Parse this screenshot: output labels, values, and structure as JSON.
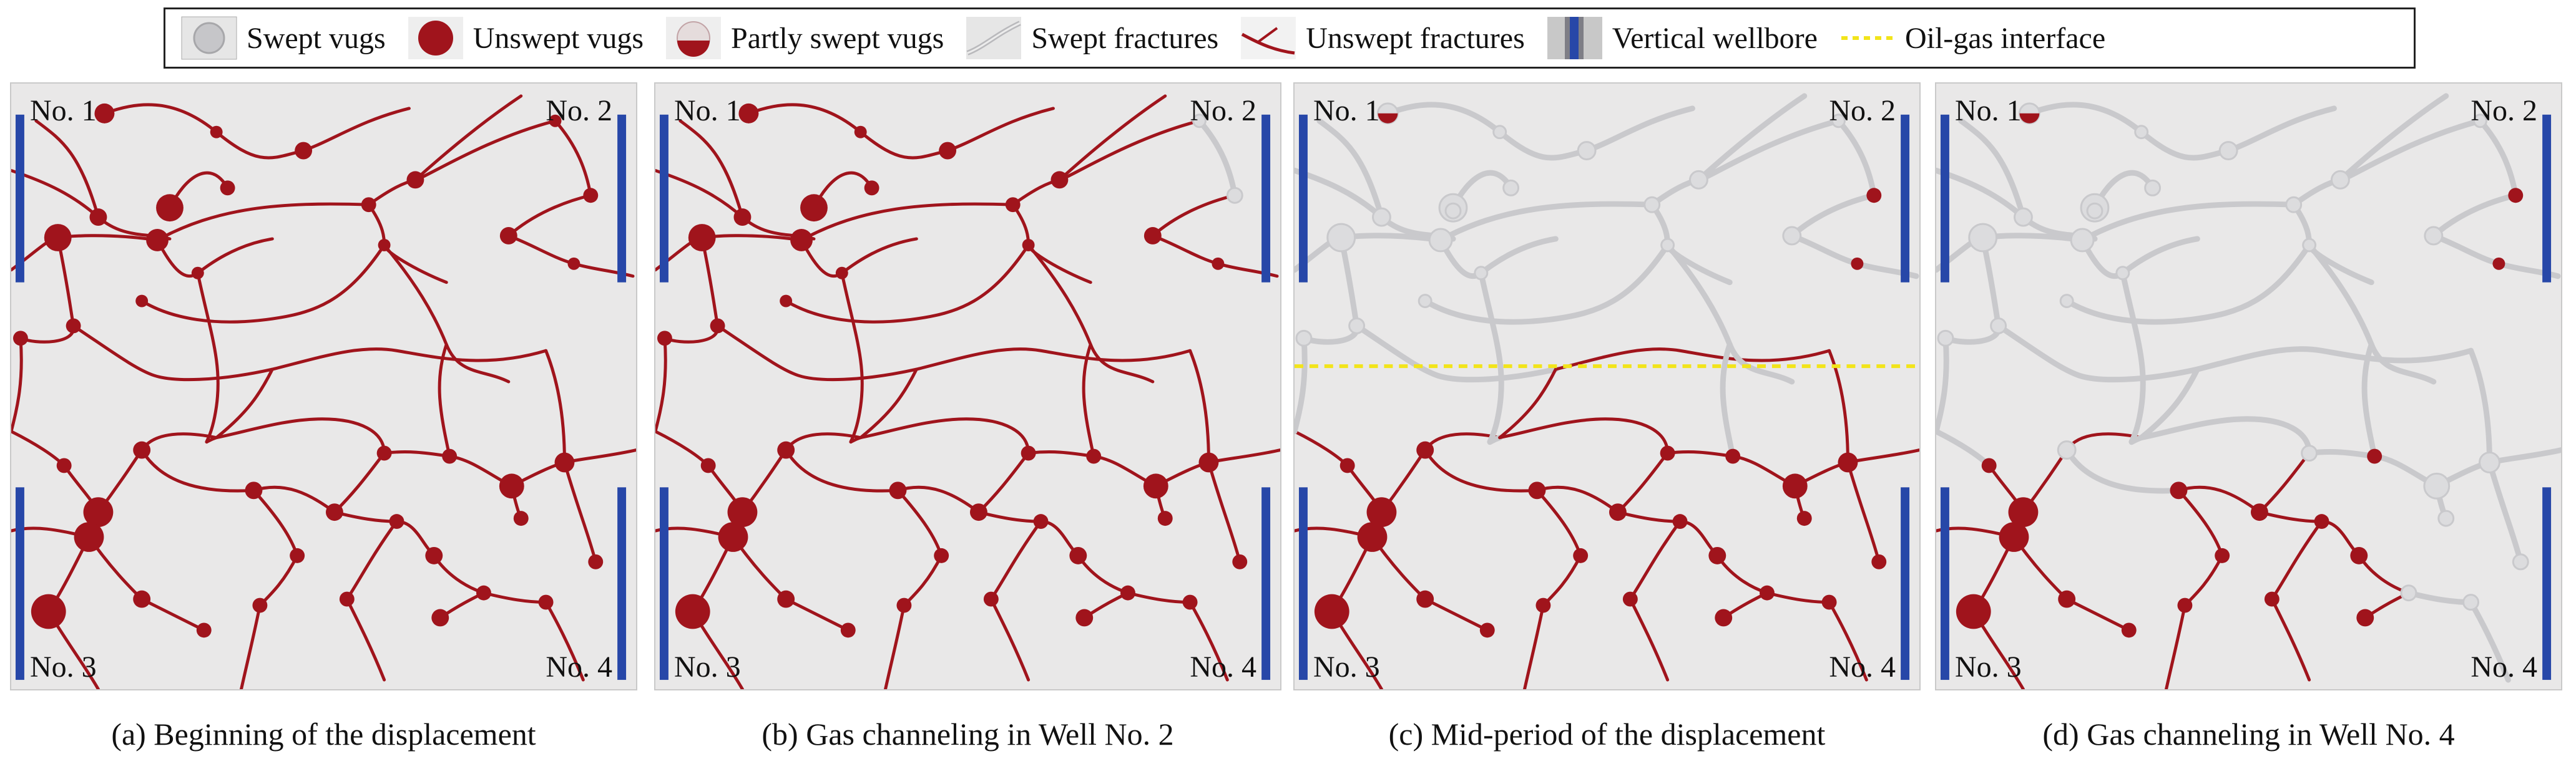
{
  "legend": {
    "items": [
      {
        "key": "swept_vugs",
        "label": "Swept vugs"
      },
      {
        "key": "unswept_vugs",
        "label": "Unswept vugs"
      },
      {
        "key": "partly_swept_vugs",
        "label": "Partly swept vugs"
      },
      {
        "key": "swept_fractures",
        "label": "Swept fractures"
      },
      {
        "key": "unswept_fractures",
        "label": "Unswept fractures"
      },
      {
        "key": "vertical_wellbore",
        "label": "Vertical wellbore"
      },
      {
        "key": "oil_gas_interface",
        "label": "Oil-gas interface"
      }
    ]
  },
  "wells": {
    "w1": "No. 1",
    "w2": "No. 2",
    "w3": "No. 3",
    "w4": "No. 4"
  },
  "panels": [
    {
      "id": "a",
      "caption": "(a) Beginning of the displacement",
      "swept_fraction": 0.0,
      "interface": false
    },
    {
      "id": "b",
      "caption": "(b) Gas channeling in Well No. 2",
      "swept_fraction": 0.05,
      "interface": false
    },
    {
      "id": "c",
      "caption": "(c) Mid-period of the displacement",
      "swept_fraction": 0.45,
      "interface": true
    },
    {
      "id": "d",
      "caption": "(d) Gas channeling in Well No. 4",
      "swept_fraction": 0.72,
      "interface": false
    }
  ],
  "colors": {
    "unswept": "#a0141c",
    "swept": "#c9c9cc",
    "wellbore": "#2747a8",
    "interface": "#f2e41a",
    "background": "#e9e8e8"
  }
}
